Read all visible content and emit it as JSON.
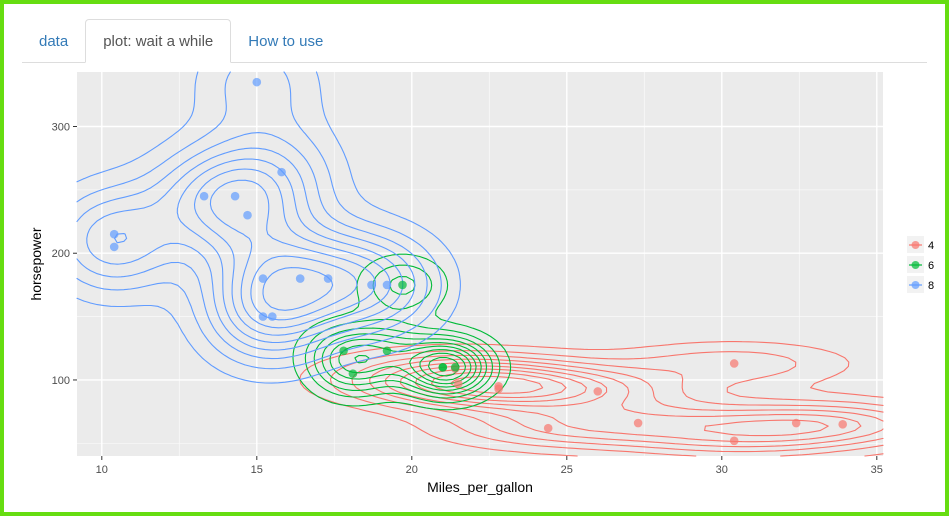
{
  "tabs": [
    {
      "label": "data",
      "active": false
    },
    {
      "label": "plot: wait a while",
      "active": true
    },
    {
      "label": "How to use",
      "active": false
    }
  ],
  "colors": {
    "4": "#f8766d",
    "6": "#00ba38",
    "8": "#619cff",
    "panel": "#ebebeb",
    "grid": "#ffffff",
    "frame": "#66dd11"
  },
  "chart_data": {
    "type": "scatter",
    "overlay": "2d-density-contours",
    "xlabel": "Miles_per_gallon",
    "ylabel": "horsepower",
    "xlim": [
      9.2,
      35.2
    ],
    "ylim": [
      40,
      343
    ],
    "xticks": [
      10,
      15,
      20,
      25,
      30,
      35
    ],
    "yticks": [
      100,
      200,
      300
    ],
    "grid": true,
    "legend_position": "right",
    "series": [
      {
        "name": "4",
        "color_key": "4",
        "x": [
          22.8,
          24.4,
          22.8,
          32.4,
          30.4,
          33.9,
          21.5,
          27.3,
          26.0,
          30.4,
          21.4
        ],
        "y": [
          93,
          62,
          95,
          66,
          52,
          65,
          97,
          66,
          91,
          113,
          109
        ]
      },
      {
        "name": "6",
        "color_key": "6",
        "x": [
          21.0,
          21.0,
          21.4,
          18.1,
          19.2,
          17.8,
          19.7
        ],
        "y": [
          110,
          110,
          110,
          105,
          123,
          123,
          175
        ]
      },
      {
        "name": "8",
        "color_key": "8",
        "x": [
          18.7,
          14.3,
          16.4,
          17.3,
          15.2,
          10.4,
          10.4,
          14.7,
          15.5,
          15.2,
          13.3,
          19.2,
          15.8,
          15.0
        ],
        "y": [
          175,
          245,
          180,
          180,
          180,
          205,
          215,
          230,
          150,
          150,
          245,
          175,
          264,
          335
        ]
      }
    ]
  }
}
